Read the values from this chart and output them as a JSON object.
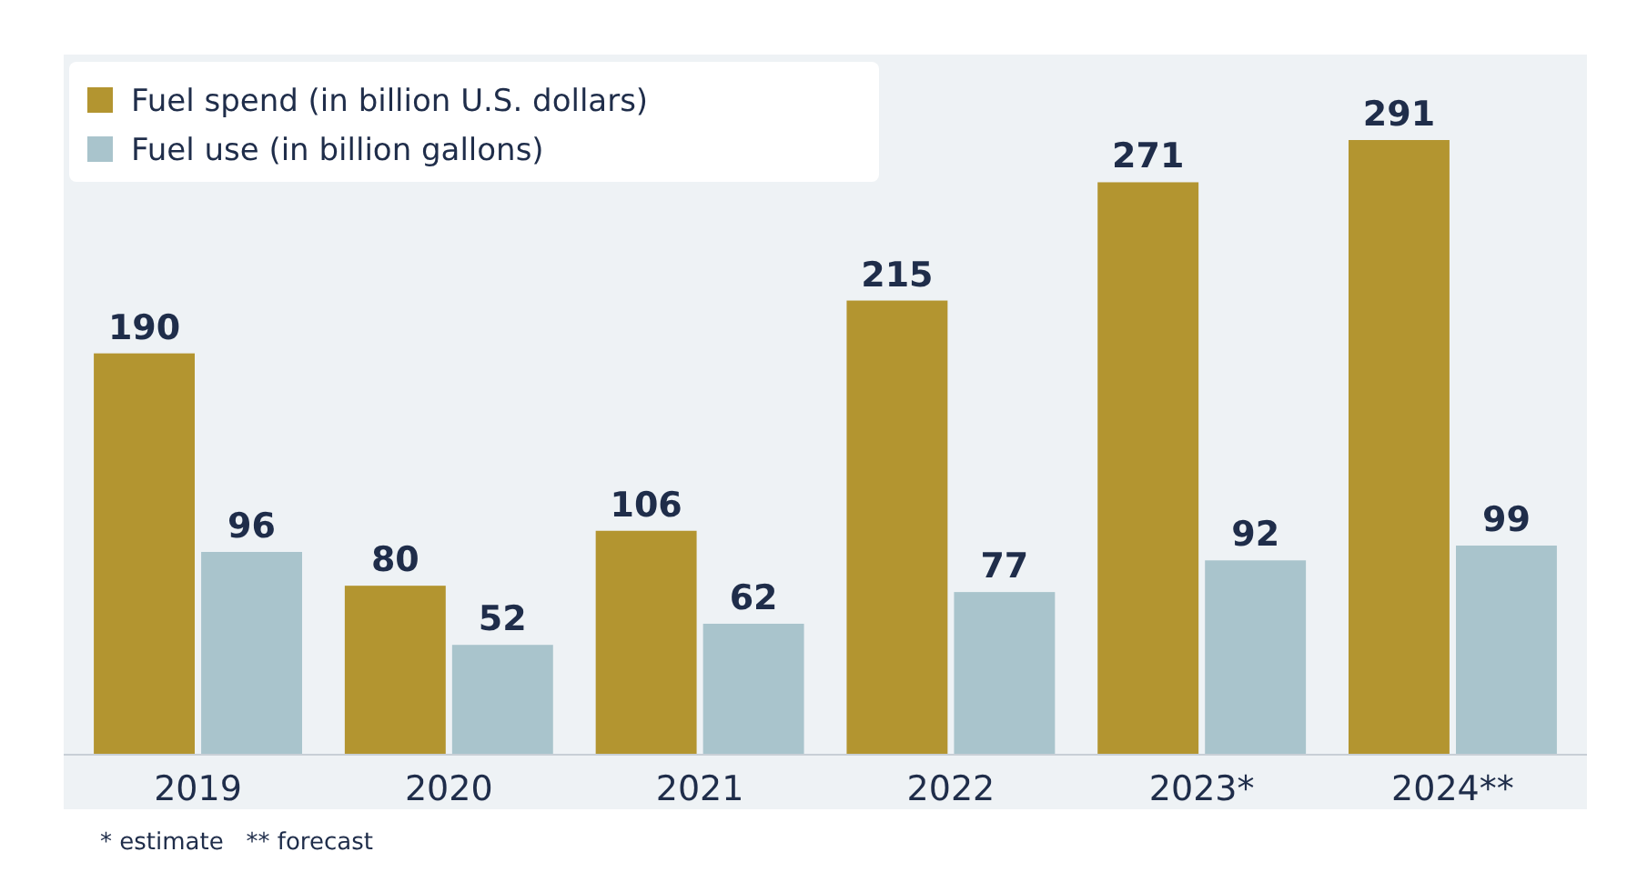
{
  "chart_data": {
    "type": "bar",
    "categories": [
      "2019",
      "2020",
      "2021",
      "2022",
      "2023*",
      "2024**"
    ],
    "series": [
      {
        "name": "Fuel spend (in billion U.S. dollars)",
        "color": "#b39530",
        "values": [
          190,
          80,
          106,
          215,
          271,
          291
        ]
      },
      {
        "name": "Fuel use (in billion gallons)",
        "color": "#a9c4cc",
        "values": [
          96,
          52,
          62,
          77,
          92,
          99
        ]
      }
    ],
    "data_labels": true,
    "legend": "top left",
    "annotations": [
      "* estimate   ** forecast"
    ]
  }
}
